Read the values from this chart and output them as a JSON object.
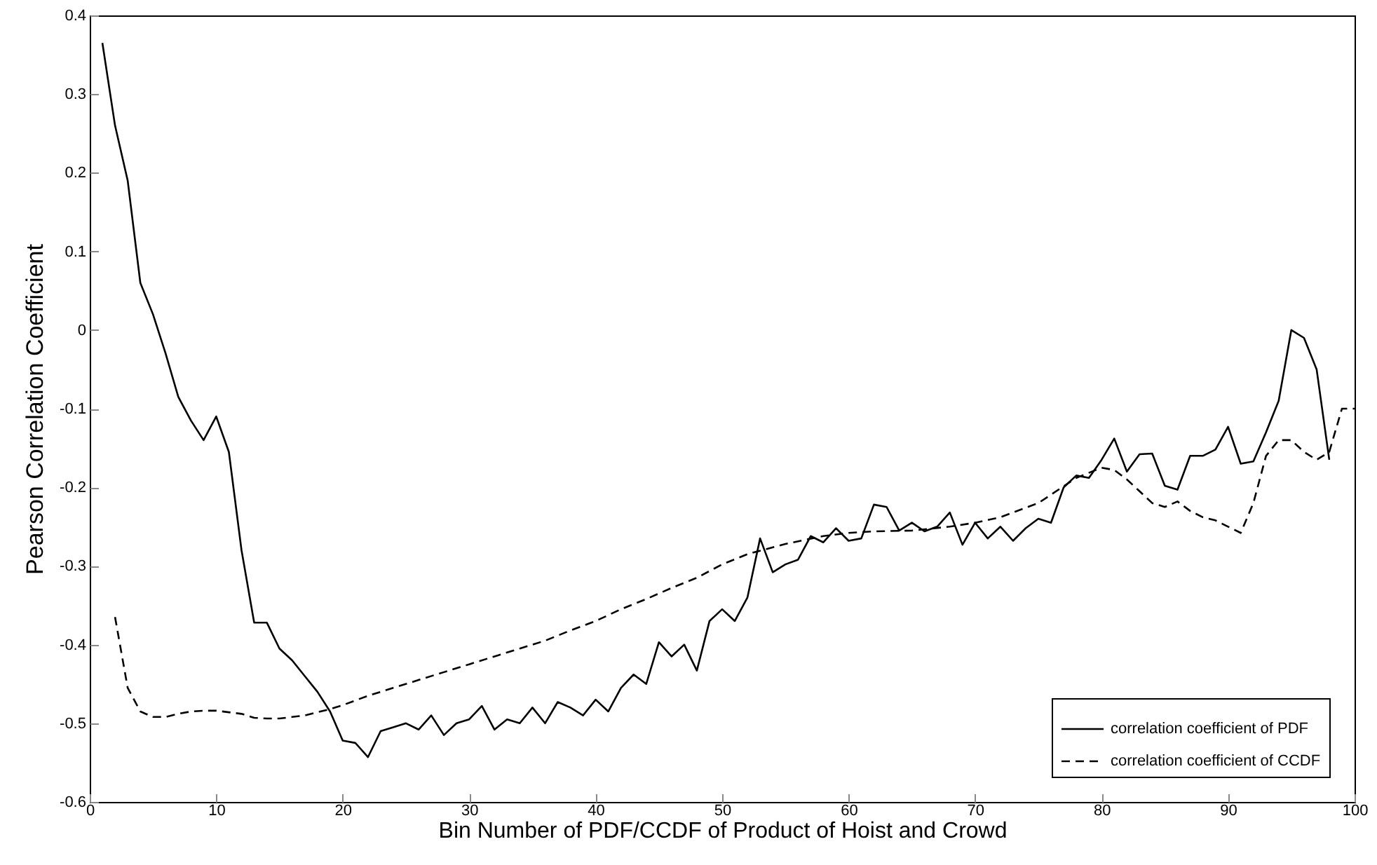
{
  "chart_data": {
    "type": "line",
    "xlabel": "Bin Number of PDF/CCDF of Product of Hoist and Crowd",
    "ylabel": "Pearson Correlation Coefficient",
    "xlim": [
      0,
      100
    ],
    "xticks": [
      0,
      10,
      20,
      30,
      40,
      50,
      60,
      70,
      80,
      90,
      100
    ],
    "ylim": [
      -0.6,
      0.4
    ],
    "yticks": [
      -0.6,
      -0.5,
      -0.4,
      -0.3,
      -0.2,
      -0.1,
      0,
      0.1,
      0.2,
      0.3,
      0.4
    ],
    "grid": false,
    "legend": "bottom right",
    "marker": "none",
    "series": [
      {
        "name": "correlation coefficient of PDF",
        "color": "#000000",
        "line_style": "solid",
        "x": [
          1,
          2,
          3,
          4,
          5,
          6,
          7,
          8,
          9,
          10,
          11,
          12,
          13,
          14,
          15,
          16,
          17,
          18,
          19,
          20,
          21,
          22,
          23,
          24,
          25,
          26,
          27,
          28,
          29,
          30,
          31,
          32,
          33,
          34,
          35,
          36,
          37,
          38,
          39,
          40,
          41,
          42,
          43,
          44,
          45,
          46,
          47,
          48,
          49,
          50,
          51,
          52,
          53,
          54,
          55,
          56,
          57,
          58,
          59,
          60,
          61,
          62,
          63,
          64,
          65,
          66,
          67,
          68,
          69,
          70,
          71,
          72,
          73,
          74,
          75,
          76,
          77,
          78,
          79,
          80,
          81,
          82,
          83,
          84,
          85,
          86,
          87,
          88,
          89,
          90,
          91,
          92,
          93,
          94,
          95,
          96,
          97,
          98
        ],
        "values": [
          0.365,
          0.26,
          0.19,
          0.06,
          0.02,
          -0.03,
          -0.085,
          -0.115,
          -0.14,
          -0.11,
          -0.155,
          -0.28,
          -0.372,
          -0.372,
          -0.405,
          -0.42,
          -0.44,
          -0.46,
          -0.485,
          -0.522,
          -0.525,
          -0.543,
          -0.51,
          -0.505,
          -0.5,
          -0.508,
          -0.49,
          -0.515,
          -0.5,
          -0.495,
          -0.478,
          -0.508,
          -0.495,
          -0.5,
          -0.48,
          -0.5,
          -0.473,
          -0.48,
          -0.49,
          -0.47,
          -0.485,
          -0.455,
          -0.438,
          -0.45,
          -0.397,
          -0.415,
          -0.4,
          -0.433,
          -0.37,
          -0.355,
          -0.37,
          -0.34,
          -0.265,
          -0.308,
          -0.298,
          -0.292,
          -0.262,
          -0.27,
          -0.252,
          -0.268,
          -0.265,
          -0.222,
          -0.225,
          -0.255,
          -0.245,
          -0.256,
          -0.25,
          -0.232,
          -0.273,
          -0.245,
          -0.265,
          -0.25,
          -0.268,
          -0.252,
          -0.24,
          -0.245,
          -0.2,
          -0.185,
          -0.188,
          -0.165,
          -0.138,
          -0.18,
          -0.158,
          -0.157,
          -0.198,
          -0.203,
          -0.16,
          -0.16,
          -0.152,
          -0.123,
          -0.17,
          -0.167,
          -0.13,
          -0.09,
          0.0,
          -0.01,
          -0.05,
          -0.165
        ]
      },
      {
        "name": "correlation coefficient of CCDF",
        "color": "#000000",
        "line_style": "dashed",
        "x": [
          2,
          3,
          4,
          5,
          6,
          7,
          8,
          9,
          10,
          11,
          12,
          13,
          14,
          15,
          16,
          17,
          18,
          19,
          20,
          22,
          24,
          26,
          28,
          30,
          32,
          34,
          36,
          38,
          40,
          42,
          44,
          46,
          48,
          50,
          52,
          55,
          58,
          60,
          62,
          65,
          68,
          70,
          72,
          75,
          78,
          80,
          81,
          82,
          83,
          84,
          85,
          86,
          87,
          88,
          89,
          90,
          91,
          92,
          93,
          94,
          95,
          96,
          97,
          98,
          99,
          100
        ],
        "values": [
          -0.365,
          -0.455,
          -0.485,
          -0.492,
          -0.492,
          -0.488,
          -0.485,
          -0.484,
          -0.484,
          -0.486,
          -0.488,
          -0.493,
          -0.494,
          -0.494,
          -0.492,
          -0.49,
          -0.486,
          -0.482,
          -0.477,
          -0.465,
          -0.455,
          -0.445,
          -0.435,
          -0.425,
          -0.415,
          -0.405,
          -0.395,
          -0.382,
          -0.37,
          -0.355,
          -0.342,
          -0.328,
          -0.315,
          -0.298,
          -0.285,
          -0.272,
          -0.262,
          -0.258,
          -0.256,
          -0.255,
          -0.25,
          -0.245,
          -0.238,
          -0.22,
          -0.188,
          -0.175,
          -0.178,
          -0.19,
          -0.205,
          -0.22,
          -0.225,
          -0.218,
          -0.23,
          -0.238,
          -0.242,
          -0.25,
          -0.258,
          -0.22,
          -0.16,
          -0.14,
          -0.14,
          -0.155,
          -0.165,
          -0.155,
          -0.1,
          -0.1
        ]
      }
    ]
  }
}
